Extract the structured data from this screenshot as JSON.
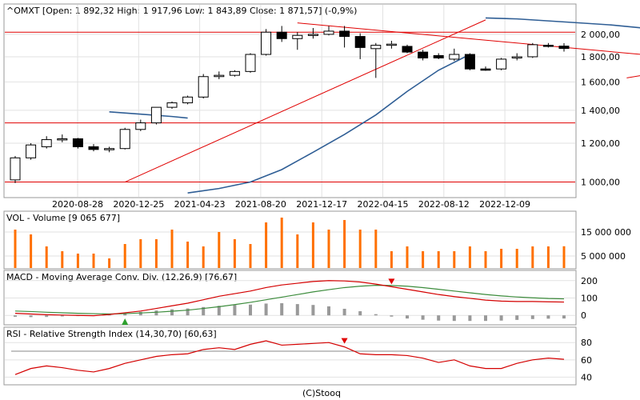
{
  "price_panel": {
    "title": "^OMXT [Open: 1 892,32  High: 1 917,96  Low: 1 843,89  Close: 1 871,57] (-0,9%)"
  },
  "volume_panel": {
    "title": "VOL - Volume [9 065 677]"
  },
  "macd_panel": {
    "title": "MACD - Moving Average Conv. Div. (12,26,9) [76,67]"
  },
  "rsi_panel": {
    "title": "RSI - Relative Strength Index (14,30,70) [60,63]"
  },
  "footer": {
    "credit": "(C)Stooq"
  },
  "colors": {
    "up_candle": "#ffffff",
    "down_candle": "#000000",
    "trend_line": "#e00000",
    "moving_average": "#2f5e95",
    "volume_bar": "#ff7000",
    "macd_line": "#d40000",
    "signal_line": "#3c8c3c",
    "histogram": "#999999",
    "rsi_line": "#d40000"
  },
  "chart_data": [
    {
      "type": "candlestick",
      "name": "price",
      "y_scale": "log",
      "ylim": [
        940,
        2280
      ],
      "x_tick_labels": [
        "2020-08-28",
        "2020-12-25",
        "2021-04-23",
        "2021-08-20",
        "2021-12-17",
        "2022-04-15",
        "2022-08-12",
        "2022-12-09"
      ],
      "y_tick_labels": [
        "1 000,00",
        "1 200,00",
        "1 400,00",
        "1 600,00",
        "1 800,00",
        "2 000,00"
      ],
      "y_ticks": [
        1000,
        1200,
        1400,
        1600,
        1800,
        2000
      ],
      "horizontal_levels": [
        1000,
        1320,
        2020
      ],
      "candles": [
        {
          "open": 1010,
          "high": 1130,
          "low": 995,
          "close": 1120
        },
        {
          "open": 1120,
          "high": 1200,
          "low": 1110,
          "close": 1190
        },
        {
          "open": 1180,
          "high": 1240,
          "low": 1170,
          "close": 1220
        },
        {
          "open": 1220,
          "high": 1250,
          "low": 1205,
          "close": 1225
        },
        {
          "open": 1225,
          "high": 1230,
          "low": 1170,
          "close": 1180
        },
        {
          "open": 1180,
          "high": 1195,
          "low": 1155,
          "close": 1165
        },
        {
          "open": 1165,
          "high": 1180,
          "low": 1150,
          "close": 1170
        },
        {
          "open": 1170,
          "high": 1290,
          "low": 1165,
          "close": 1280
        },
        {
          "open": 1280,
          "high": 1340,
          "low": 1270,
          "close": 1320
        },
        {
          "open": 1320,
          "high": 1420,
          "low": 1310,
          "close": 1420
        },
        {
          "open": 1420,
          "high": 1460,
          "low": 1410,
          "close": 1450
        },
        {
          "open": 1450,
          "high": 1500,
          "low": 1440,
          "close": 1490
        },
        {
          "open": 1490,
          "high": 1660,
          "low": 1480,
          "close": 1640
        },
        {
          "open": 1640,
          "high": 1680,
          "low": 1620,
          "close": 1650
        },
        {
          "open": 1650,
          "high": 1690,
          "low": 1640,
          "close": 1680
        },
        {
          "open": 1680,
          "high": 1830,
          "low": 1670,
          "close": 1820
        },
        {
          "open": 1820,
          "high": 2050,
          "low": 1810,
          "close": 2020
        },
        {
          "open": 2020,
          "high": 2080,
          "low": 1930,
          "close": 1960
        },
        {
          "open": 1960,
          "high": 2020,
          "low": 1860,
          "close": 1990
        },
        {
          "open": 1990,
          "high": 2060,
          "low": 1960,
          "close": 2000
        },
        {
          "open": 2000,
          "high": 2080,
          "low": 1990,
          "close": 2030
        },
        {
          "open": 2030,
          "high": 2080,
          "low": 1880,
          "close": 1980
        },
        {
          "open": 1980,
          "high": 2010,
          "low": 1780,
          "close": 1880
        },
        {
          "open": 1870,
          "high": 1920,
          "low": 1630,
          "close": 1900
        },
        {
          "open": 1900,
          "high": 1940,
          "low": 1870,
          "close": 1910
        },
        {
          "open": 1890,
          "high": 1905,
          "low": 1830,
          "close": 1840
        },
        {
          "open": 1840,
          "high": 1860,
          "low": 1770,
          "close": 1790
        },
        {
          "open": 1810,
          "high": 1830,
          "low": 1780,
          "close": 1790
        },
        {
          "open": 1780,
          "high": 1870,
          "low": 1765,
          "close": 1820
        },
        {
          "open": 1820,
          "high": 1830,
          "low": 1690,
          "close": 1700
        },
        {
          "open": 1700,
          "high": 1720,
          "low": 1685,
          "close": 1690
        },
        {
          "open": 1700,
          "high": 1790,
          "low": 1690,
          "close": 1780
        },
        {
          "open": 1790,
          "high": 1830,
          "low": 1770,
          "close": 1800
        },
        {
          "open": 1800,
          "high": 1920,
          "low": 1790,
          "close": 1905
        },
        {
          "open": 1900,
          "high": 1920,
          "low": 1880,
          "close": 1895
        },
        {
          "open": 1892.32,
          "high": 1917.96,
          "low": 1843.89,
          "close": 1871.57
        }
      ],
      "moving_average_segments": [
        [
          [
            6,
            1390
          ],
          [
            8,
            1375
          ],
          [
            10,
            1360
          ],
          [
            11,
            1350
          ]
        ],
        [
          [
            11,
            950
          ],
          [
            13,
            970
          ],
          [
            15,
            1000
          ],
          [
            17,
            1060
          ],
          [
            19,
            1150
          ],
          [
            21,
            1250
          ],
          [
            23,
            1370
          ],
          [
            25,
            1530
          ],
          [
            27,
            1690
          ],
          [
            29,
            1820
          ]
        ],
        [
          [
            30,
            2160
          ],
          [
            32,
            2150
          ],
          [
            34,
            2130
          ],
          [
            36,
            2110
          ],
          [
            38,
            2090
          ],
          [
            40,
            2060
          ],
          [
            42,
            2030
          ],
          [
            44,
            2000
          ],
          [
            46,
            1970
          ],
          [
            48,
            1940
          ],
          [
            50,
            1915
          ]
        ],
        [
          [
            51,
            1620
          ],
          [
            52,
            1625
          ]
        ]
      ],
      "trend_lines": [
        [
          [
            7,
            1000
          ],
          [
            30,
            2140
          ]
        ],
        [
          [
            18,
            2110
          ],
          [
            50,
            1700
          ]
        ],
        [
          [
            39,
            1630
          ],
          [
            52,
            1910
          ]
        ]
      ]
    },
    {
      "type": "bar",
      "name": "volume",
      "ylim": [
        0,
        23000000
      ],
      "y_tick_labels": [
        "5 000 000",
        "15 000 000"
      ],
      "y_ticks": [
        5000000,
        15000000
      ],
      "values": [
        16000000,
        14000000,
        9000000,
        7000000,
        6000000,
        6000000,
        4000000,
        10000000,
        12000000,
        12000000,
        16000000,
        11000000,
        9000000,
        15000000,
        12000000,
        10000000,
        19000000,
        21000000,
        14000000,
        19000000,
        16000000,
        20000000,
        16000000,
        16000000,
        7000000,
        9000000,
        7000000,
        7000000,
        7000000,
        9000000,
        7000000,
        8000000,
        8000000,
        9000000,
        9000000,
        9065677
      ]
    },
    {
      "type": "line",
      "name": "macd",
      "ylim": [
        -45,
        245
      ],
      "y_tick_labels": [
        "0",
        "100",
        "200"
      ],
      "y_ticks": [
        0,
        100,
        200
      ],
      "macd": [
        12,
        8,
        4,
        2,
        0,
        -2,
        5,
        15,
        25,
        40,
        55,
        70,
        90,
        110,
        125,
        140,
        160,
        175,
        185,
        195,
        200,
        198,
        192,
        180,
        165,
        150,
        135,
        120,
        108,
        98,
        88,
        82,
        80,
        80,
        78,
        76.67
      ],
      "signal": [
        25,
        22,
        18,
        15,
        12,
        10,
        8,
        10,
        14,
        18,
        24,
        30,
        40,
        50,
        62,
        75,
        90,
        105,
        120,
        135,
        148,
        160,
        168,
        173,
        172,
        168,
        160,
        150,
        140,
        130,
        120,
        112,
        106,
        101,
        97,
        95
      ],
      "histogram": [
        -8,
        -10,
        -9,
        -6,
        -4,
        -3,
        5,
        12,
        20,
        28,
        35,
        40,
        48,
        55,
        60,
        62,
        68,
        70,
        65,
        60,
        52,
        38,
        24,
        7,
        -7,
        -18,
        -25,
        -30,
        -32,
        -32,
        -32,
        -30,
        -26,
        -21,
        -19,
        -18
      ],
      "buy_marker_index": 7,
      "sell_marker_index": 24
    },
    {
      "type": "line",
      "name": "rsi",
      "ylim": [
        33,
        95
      ],
      "y_tick_labels": [
        "40",
        "60",
        "80"
      ],
      "y_ticks": [
        40,
        60,
        80
      ],
      "reference_lines": [
        30,
        70
      ],
      "values": [
        43,
        50,
        53,
        51,
        48,
        46,
        50,
        56,
        60,
        64,
        66,
        67,
        72,
        74,
        72,
        78,
        82,
        77,
        78,
        79,
        80,
        75,
        67,
        66,
        66,
        65,
        62,
        57,
        60,
        53,
        50,
        50,
        56,
        60,
        62,
        60.63
      ],
      "sell_marker_index": 21
    }
  ]
}
